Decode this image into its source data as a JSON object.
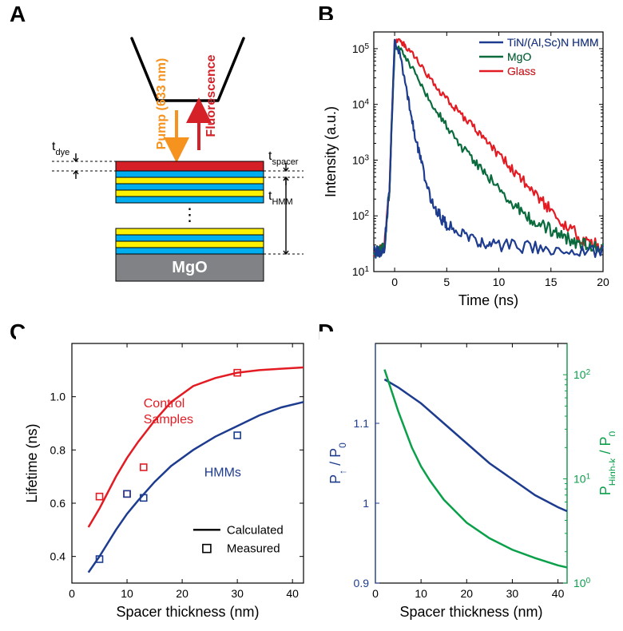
{
  "labels": {
    "A": "A",
    "B": "B",
    "C": "C",
    "D": "D"
  },
  "label_fontsize": 28,
  "panelA": {
    "pump_label": "Pump (633 nm)",
    "fluor_label": "Fluorescence",
    "t_dye": "t",
    "t_dye_sub": "dye",
    "t_spacer": "t",
    "t_spacer_sub": "spacer",
    "t_hmm": "t",
    "t_hmm_sub": "HMM",
    "substrate": "MgO",
    "dots": "⋮",
    "colors": {
      "dye": "#d62027",
      "tin": "#fff200",
      "alscn": "#00aeef",
      "spacer": "#00aeef",
      "substrate": "#808285",
      "pump": "#f6921e",
      "fluor": "#d62027"
    }
  },
  "panelB": {
    "type": "line",
    "title": "",
    "xlabel": "Time (ns)",
    "ylabel": "Intensity (a.u.)",
    "label_fontsize": 18,
    "tick_fontsize": 14,
    "xlim": [
      -2,
      20
    ],
    "ylim_log": [
      1,
      5.3
    ],
    "xticks": [
      0,
      5,
      10,
      15,
      20
    ],
    "yticks_log": [
      1,
      2,
      3,
      4,
      5
    ],
    "legend": [
      {
        "label": "TiN/(Al,Sc)N HMM",
        "color": "#1d3c8f"
      },
      {
        "label": "MgO",
        "color": "#0a6b3d"
      },
      {
        "label": "Glass",
        "color": "#e31b23"
      }
    ],
    "series": {
      "glass": {
        "color": "#e31b23",
        "width": 2.2,
        "x": [
          -2,
          -1.5,
          -1,
          -0.5,
          0,
          0.5,
          1,
          2,
          3,
          4,
          5,
          6,
          7,
          8,
          9,
          10,
          11,
          12,
          13,
          14,
          15,
          16,
          17,
          18,
          19,
          20
        ],
        "ylog": [
          1.35,
          1.35,
          1.4,
          2.5,
          5.12,
          5.15,
          5.05,
          4.85,
          4.55,
          4.3,
          4.1,
          3.9,
          3.7,
          3.5,
          3.3,
          3.1,
          2.9,
          2.7,
          2.5,
          2.3,
          2.1,
          1.9,
          1.75,
          1.6,
          1.5,
          1.45
        ]
      },
      "mgo": {
        "color": "#0a6b3d",
        "width": 2.2,
        "x": [
          -2,
          -1.5,
          -1,
          -0.5,
          0,
          0.5,
          1,
          2,
          3,
          4,
          5,
          6,
          7,
          8,
          9,
          10,
          11,
          12,
          13,
          14,
          15,
          16,
          17,
          18,
          19,
          20
        ],
        "ylog": [
          1.35,
          1.35,
          1.4,
          2.5,
          5.0,
          5.0,
          4.85,
          4.55,
          4.2,
          3.9,
          3.6,
          3.35,
          3.1,
          2.9,
          2.7,
          2.5,
          2.3,
          2.1,
          1.95,
          1.85,
          1.75,
          1.65,
          1.55,
          1.5,
          1.45,
          1.4
        ]
      },
      "hmm": {
        "color": "#1d3c8f",
        "width": 2.2,
        "x": [
          -2,
          -1.5,
          -1,
          -0.5,
          0,
          0.5,
          1,
          1.5,
          2,
          2.5,
          3,
          3.5,
          4,
          4.5,
          5,
          6,
          7,
          8,
          9,
          10,
          12,
          14,
          16,
          18,
          20
        ],
        "ylog": [
          1.35,
          1.35,
          1.4,
          2.5,
          5.15,
          4.9,
          4.4,
          3.9,
          3.4,
          3.0,
          2.6,
          2.3,
          2.1,
          1.95,
          1.85,
          1.7,
          1.6,
          1.55,
          1.5,
          1.48,
          1.45,
          1.42,
          1.4,
          1.38,
          1.36
        ]
      }
    },
    "noise_amp": 0.08,
    "background": "#ffffff",
    "axis_color": "#000000"
  },
  "panelC": {
    "type": "line+scatter",
    "xlabel": "Spacer thickness (nm)",
    "ylabel": "Lifetime (ns)",
    "label_fontsize": 18,
    "tick_fontsize": 14,
    "xlim": [
      0,
      42
    ],
    "ylim": [
      0.3,
      1.2
    ],
    "xticks": [
      0,
      10,
      20,
      30,
      40
    ],
    "yticks": [
      0.4,
      0.6,
      0.8,
      1.0
    ],
    "lines": {
      "control": {
        "color": "#e31b23",
        "width": 2.5,
        "x": [
          3,
          5,
          8,
          10,
          12,
          15,
          18,
          22,
          26,
          30,
          34,
          38,
          42
        ],
        "y": [
          0.51,
          0.58,
          0.7,
          0.77,
          0.83,
          0.91,
          0.98,
          1.04,
          1.07,
          1.09,
          1.1,
          1.105,
          1.11
        ]
      },
      "hmm": {
        "color": "#1d3c8f",
        "width": 2.5,
        "x": [
          3,
          5,
          8,
          10,
          12,
          15,
          18,
          22,
          26,
          30,
          34,
          38,
          42
        ],
        "y": [
          0.34,
          0.4,
          0.5,
          0.56,
          0.61,
          0.68,
          0.74,
          0.8,
          0.85,
          0.89,
          0.93,
          0.96,
          0.98
        ]
      }
    },
    "points": {
      "control": {
        "color": "#e31b23",
        "x": [
          5,
          10,
          13,
          30
        ],
        "y": [
          0.625,
          0.635,
          0.735,
          1.09
        ]
      },
      "hmm": {
        "color": "#1d3c8f",
        "x": [
          5,
          10,
          13,
          30
        ],
        "y": [
          0.39,
          0.635,
          0.62,
          0.855
        ]
      }
    },
    "annot": {
      "control": "Control\nSamples",
      "hmm": "HMMs",
      "calc": "Calculated",
      "meas": "Measured"
    },
    "marker_size": 8,
    "background": "#ffffff",
    "axis_color": "#000000"
  },
  "panelD": {
    "type": "line-dual-y",
    "xlabel": "Spacer thickness (nm)",
    "ylabel_left": "P↑ / P0",
    "ylabel_left_parts": {
      "p": "P",
      "up": "↑",
      "slash": " / P",
      "zero": "0"
    },
    "ylabel_right_parts": {
      "p": "P",
      "hk": "High-k",
      "slash": " / P",
      "zero": "0"
    },
    "label_fontsize": 18,
    "tick_fontsize": 14,
    "xlim": [
      0,
      42
    ],
    "ylim_left": [
      0.9,
      1.2
    ],
    "ylim_right_log": [
      0,
      2.3
    ],
    "xticks": [
      0,
      10,
      20,
      30,
      40
    ],
    "yticks_left": [
      0.9,
      1.0,
      1.1
    ],
    "yticks_right_log": [
      0,
      1,
      2
    ],
    "left_line": {
      "color": "#1d3c8f",
      "width": 2.5,
      "x": [
        2,
        5,
        10,
        15,
        20,
        25,
        30,
        35,
        40,
        42
      ],
      "y": [
        1.155,
        1.145,
        1.125,
        1.1,
        1.075,
        1.05,
        1.03,
        1.01,
        0.995,
        0.99
      ]
    },
    "right_line": {
      "color": "#0aa04a",
      "width": 2.5,
      "x": [
        2,
        5,
        8,
        10,
        12,
        15,
        20,
        25,
        30,
        35,
        40,
        42
      ],
      "ylog": [
        2.05,
        1.65,
        1.3,
        1.12,
        0.98,
        0.8,
        0.58,
        0.43,
        0.32,
        0.24,
        0.17,
        0.15
      ]
    },
    "left_color": "#1d3c8f",
    "right_color": "#0aa04a",
    "background": "#ffffff",
    "axis_color": "#000000"
  }
}
